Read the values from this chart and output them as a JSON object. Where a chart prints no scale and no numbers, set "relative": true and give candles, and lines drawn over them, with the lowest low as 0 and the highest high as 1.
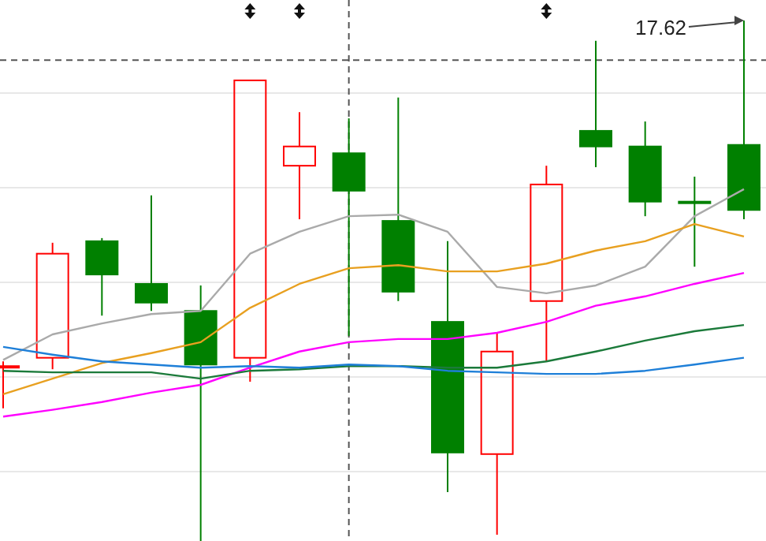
{
  "chart_data": {
    "type": "candlestick",
    "relative": true,
    "categories": [
      null,
      null,
      null,
      null,
      null,
      null,
      null,
      null,
      null,
      null,
      null,
      null,
      null,
      null,
      null,
      null
    ],
    "ohlc": [
      [
        0.336,
        0.345,
        0.255,
        0.336
      ],
      [
        0.352,
        0.573,
        0.33,
        0.552
      ],
      [
        0.576,
        0.582,
        0.433,
        0.512
      ],
      [
        0.494,
        0.664,
        0.442,
        0.458
      ],
      [
        0.442,
        0.491,
        0,
        0.339
      ],
      [
        0.352,
        0.885,
        0.306,
        0.885
      ],
      [
        0.721,
        0.824,
        0.618,
        0.758
      ],
      [
        0.745,
        0.812,
        0.394,
        0.673
      ],
      [
        0.615,
        0.852,
        0.461,
        0.479
      ],
      [
        0.421,
        0.576,
        0.094,
        0.17
      ],
      [
        0.167,
        0.4,
        0.012,
        0.364
      ],
      [
        0.461,
        0.721,
        0.345,
        0.685
      ],
      [
        0.788,
        0.961,
        0.718,
        0.758
      ],
      [
        0.758,
        0.806,
        0.624,
        0.652
      ],
      [
        0.652,
        0.7,
        0.527,
        0.652
      ],
      [
        0.761,
        1,
        0.618,
        0.636
      ]
    ],
    "colors": [
      "#ff0000",
      "#ff0000",
      "#008000",
      "#008000",
      "#008000",
      "#ff0000",
      "#ff0000",
      "#008000",
      "#008000",
      "#008000",
      "#ff0000",
      "#ff0000",
      "#008000",
      "#008000",
      "#008000",
      "#008000"
    ],
    "series": [
      {
        "type": "line",
        "color": "#aaaaaa",
        "values": [
          0.348,
          0.397,
          0.418,
          0.436,
          0.442,
          0.552,
          0.594,
          0.624,
          0.627,
          0.594,
          0.488,
          0.476,
          0.491,
          0.527,
          0.624,
          0.676
        ]
      },
      {
        "type": "line",
        "color": "#e8a020",
        "values": [
          0.282,
          0.312,
          0.342,
          0.361,
          0.382,
          0.448,
          0.494,
          0.524,
          0.53,
          0.518,
          0.518,
          0.533,
          0.558,
          0.576,
          0.609,
          0.585
        ]
      },
      {
        "type": "line",
        "color": "#ff00ff",
        "values": [
          0.239,
          0.252,
          0.267,
          0.285,
          0.3,
          0.333,
          0.364,
          0.382,
          0.388,
          0.388,
          0.4,
          0.421,
          0.452,
          0.47,
          0.494,
          0.515
        ]
      },
      {
        "type": "line",
        "color": "#1b7a3a",
        "values": [
          0.327,
          0.324,
          0.324,
          0.324,
          0.312,
          0.327,
          0.33,
          0.336,
          0.336,
          0.333,
          0.333,
          0.345,
          0.364,
          0.385,
          0.403,
          0.415
        ]
      },
      {
        "type": "line",
        "color": "#1e7fd8",
        "values": [
          0.373,
          0.358,
          0.345,
          0.339,
          0.333,
          0.336,
          0.333,
          0.339,
          0.336,
          0.327,
          0.324,
          0.321,
          0.321,
          0.327,
          0.339,
          0.352
        ]
      }
    ],
    "ref_lines": [
      {
        "axis": "y",
        "value": 0.924,
        "color": "#555555",
        "line_style": "dashed"
      }
    ],
    "annotations": [
      "17.62"
    ],
    "grid": "y"
  }
}
